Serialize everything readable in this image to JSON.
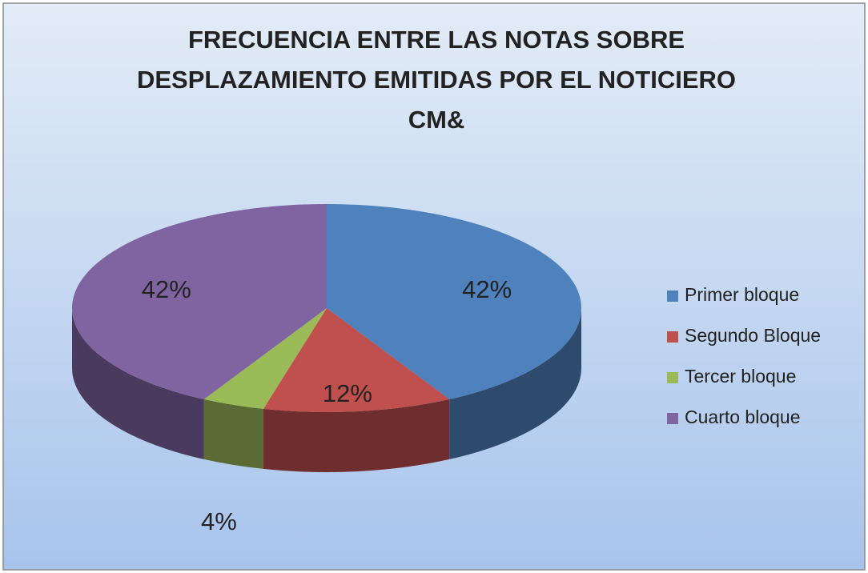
{
  "chart_data": {
    "type": "pie3d",
    "title": [
      "FRECUENCIA ENTRE LAS NOTAS SOBRE",
      "DESPLAZAMIENTO EMITIDAS POR EL NOTICIERO",
      "CM&"
    ],
    "categories": [
      "Primer bloque",
      "Segundo Bloque",
      "Tercer bloque",
      "Cuarto bloque"
    ],
    "values": [
      42,
      12,
      4,
      42
    ],
    "value_labels": [
      "42%",
      "12%",
      "4%",
      "42%"
    ],
    "colors": [
      "#4f81bd",
      "#c0504d",
      "#9bbb59",
      "#8064a2"
    ],
    "legend": "right"
  }
}
